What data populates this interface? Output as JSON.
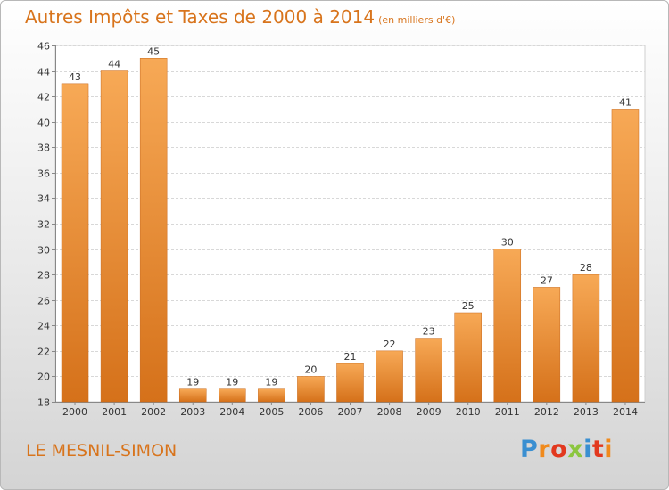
{
  "header": {
    "title": "Autres Impôts et Taxes de 2000 à 2014",
    "subtitle": "(en milliers d'€)"
  },
  "footer": {
    "commune": "LE MESNIL-SIMON",
    "logo": "Proxiti"
  },
  "colors": {
    "bar_light": "#f7a956",
    "bar_dark": "#d5711a",
    "accent": "#d8741c",
    "logo_letters": [
      "#3a8fd1",
      "#f08a1c",
      "#e2381e",
      "#8cc63f",
      "#3a8fd1",
      "#e2381e",
      "#f08a1c"
    ]
  },
  "chart_data": {
    "type": "bar",
    "categories": [
      "2000",
      "2001",
      "2002",
      "2003",
      "2004",
      "2005",
      "2006",
      "2007",
      "2008",
      "2009",
      "2010",
      "2011",
      "2012",
      "2013",
      "2014"
    ],
    "values": [
      43,
      44,
      45,
      19,
      19,
      19,
      20,
      21,
      22,
      23,
      25,
      30,
      27,
      28,
      41
    ],
    "yticks": [
      18,
      20,
      22,
      24,
      26,
      28,
      30,
      32,
      34,
      36,
      38,
      40,
      42,
      44,
      46
    ],
    "ylim": [
      18,
      46
    ],
    "grid": true,
    "title": "Autres Impôts et Taxes de 2000 à 2014",
    "xlabel": "",
    "ylabel": ""
  }
}
